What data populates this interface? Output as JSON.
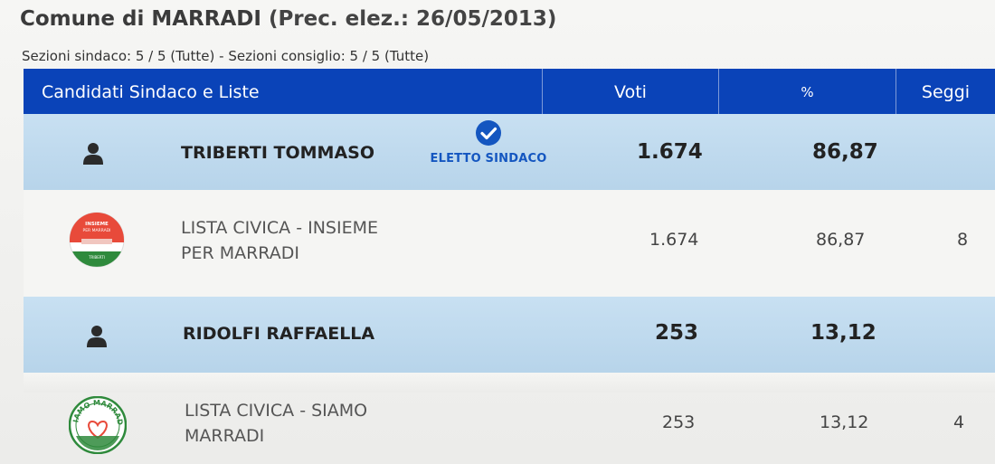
{
  "page": {
    "title_main": "Comune di MARRADI",
    "title_prec": "(Prec. elez.: 26/05/2013)",
    "sections": "Sezioni sindaco: 5 / 5 (Tutte) - Sezioni consiglio: 5 / 5 (Tutte)"
  },
  "table": {
    "headers": {
      "candidates": "Candidati Sindaco e Liste",
      "votes": "Voti",
      "percent": "%",
      "seats": "Seggi"
    },
    "rows": [
      {
        "type": "candidate",
        "icon": "person-icon",
        "name": "TRIBERTI TOMMASO",
        "badge": "ELETTO SINDACO",
        "badge_icon": "check-circle-icon",
        "votes": "1.674",
        "percent": "86,87"
      },
      {
        "type": "list",
        "logo": "insieme-per-marradi-logo",
        "name": "LISTA CIVICA - INSIEME PER MARRADI",
        "votes": "1.674",
        "percent": "86,87",
        "seats": "8"
      },
      {
        "type": "candidate",
        "icon": "person-icon",
        "name": "RIDOLFI RAFFAELLA",
        "votes": "253",
        "percent": "13,12"
      },
      {
        "type": "list",
        "logo": "siamo-marradi-logo",
        "name": "LISTA CIVICA - SIAMO MARRADI",
        "votes": "253",
        "percent": "13,12",
        "seats": "4"
      }
    ]
  },
  "logos": {
    "insieme": {
      "top_text": "INSIEME PER MARRADI",
      "bottom_text": "TRIBERTI SINDACO"
    },
    "siamo": {
      "arc_text": "SIAMO MARRADI"
    }
  },
  "colors": {
    "header_bg": "#0a43b8",
    "candidate_row_bg": "#c8e0f2",
    "elected_blue": "#1456c0"
  }
}
